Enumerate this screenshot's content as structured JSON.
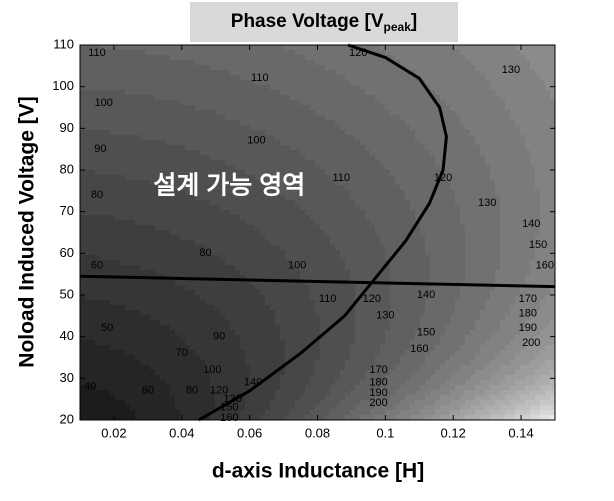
{
  "chart_data": {
    "type": "contour",
    "title": "Phase Voltage [V",
    "title_subscript": "peak",
    "title_suffix": "]",
    "xlabel": "d-axis Inductance [H]",
    "ylabel": "Noload Induced Voltage [V]",
    "xlim": [
      0.01,
      0.15
    ],
    "ylim": [
      20,
      110
    ],
    "xticks": [
      0.02,
      0.04,
      0.06,
      0.08,
      0.1,
      {
        "value": 0.12,
        "label": "0.12"
      },
      {
        "value": 0.14,
        "label": "0.14"
      }
    ],
    "yticks": [
      20,
      30,
      40,
      50,
      60,
      70,
      80,
      90,
      100,
      110
    ],
    "levels": [
      30,
      40,
      50,
      60,
      70,
      80,
      90,
      100,
      110,
      120,
      130,
      140,
      150,
      160,
      170,
      180,
      190,
      200,
      210,
      220,
      230,
      240,
      250,
      260,
      270,
      280,
      290
    ],
    "contour_labels": [
      {
        "value": 110,
        "x": 0.015,
        "y": 108
      },
      {
        "value": 120,
        "x": 0.092,
        "y": 108
      },
      {
        "value": 130,
        "x": 0.137,
        "y": 104
      },
      {
        "value": 100,
        "x": 0.017,
        "y": 96
      },
      {
        "value": 110,
        "x": 0.063,
        "y": 102
      },
      {
        "value": 90,
        "x": 0.016,
        "y": 85
      },
      {
        "value": 100,
        "x": 0.062,
        "y": 87
      },
      {
        "value": 110,
        "x": 0.087,
        "y": 78
      },
      {
        "value": 120,
        "x": 0.117,
        "y": 78
      },
      {
        "value": 80,
        "x": 0.015,
        "y": 74
      },
      {
        "value": 130,
        "x": 0.13,
        "y": 72
      },
      {
        "value": 140,
        "x": 0.143,
        "y": 67
      },
      {
        "value": 150,
        "x": 0.145,
        "y": 62
      },
      {
        "value": 160,
        "x": 0.147,
        "y": 57
      },
      {
        "value": 80,
        "x": 0.047,
        "y": 60
      },
      {
        "value": 100,
        "x": 0.074,
        "y": 57
      },
      {
        "value": 60,
        "x": 0.015,
        "y": 57
      },
      {
        "value": 110,
        "x": 0.083,
        "y": 49
      },
      {
        "value": 120,
        "x": 0.096,
        "y": 49
      },
      {
        "value": 130,
        "x": 0.1,
        "y": 45
      },
      {
        "value": 140,
        "x": 0.112,
        "y": 50
      },
      {
        "value": 150,
        "x": 0.112,
        "y": 41
      },
      {
        "value": 160,
        "x": 0.11,
        "y": 37
      },
      {
        "value": 90,
        "x": 0.051,
        "y": 40
      },
      {
        "value": 70,
        "x": 0.04,
        "y": 36
      },
      {
        "value": 50,
        "x": 0.018,
        "y": 42
      },
      {
        "value": 40,
        "x": 0.013,
        "y": 28
      },
      {
        "value": 60,
        "x": 0.03,
        "y": 27
      },
      {
        "value": 80,
        "x": 0.043,
        "y": 27
      },
      {
        "value": 100,
        "x": 0.049,
        "y": 32
      },
      {
        "value": 120,
        "x": 0.051,
        "y": 27
      },
      {
        "value": 130,
        "x": 0.055,
        "y": 25
      },
      {
        "value": 140,
        "x": 0.061,
        "y": 29
      },
      {
        "value": 150,
        "x": 0.054,
        "y": 23
      },
      {
        "value": 160,
        "x": 0.054,
        "y": 20.5
      },
      {
        "value": 170,
        "x": 0.142,
        "y": 49
      },
      {
        "value": 180,
        "x": 0.142,
        "y": 45.5
      },
      {
        "value": 190,
        "x": 0.142,
        "y": 42
      },
      {
        "value": 200,
        "x": 0.143,
        "y": 38.5
      },
      {
        "value": 170,
        "x": 0.098,
        "y": 32
      },
      {
        "value": 180,
        "x": 0.098,
        "y": 29
      },
      {
        "value": 190,
        "x": 0.098,
        "y": 26.5
      },
      {
        "value": 200,
        "x": 0.098,
        "y": 24
      }
    ],
    "annotation": {
      "text": "설계 가능 영역",
      "x": 0.054,
      "y": 76
    },
    "series": [
      {
        "color": "#000000",
        "x": [
          0.01,
          0.15
        ],
        "values": [
          54.5,
          52
        ]
      },
      {
        "color": "#000000",
        "x": [
          0.045,
          0.06,
          0.075,
          0.088,
          0.098,
          0.106,
          0.113,
          0.117,
          0.118,
          0.116,
          0.11,
          0.1,
          0.089
        ],
        "values": [
          20,
          27,
          36,
          45,
          55,
          63,
          72,
          80,
          88,
          95,
          102,
          107,
          110
        ]
      }
    ]
  }
}
